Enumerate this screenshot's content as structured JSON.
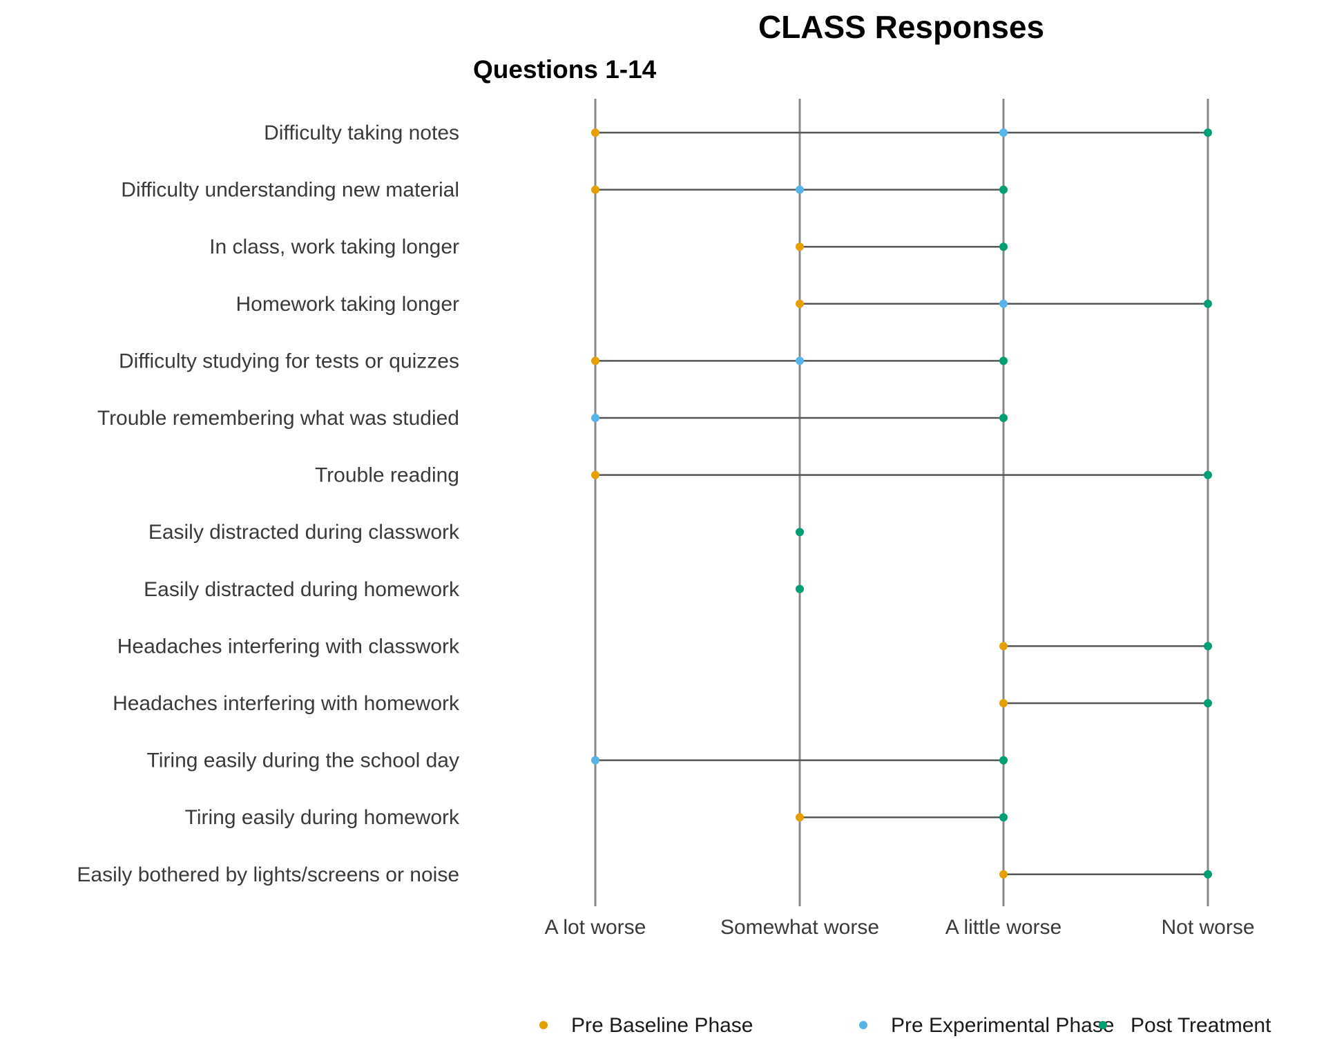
{
  "chart_data": {
    "type": "dumbbell",
    "title": "CLASS Responses",
    "subtitle": "Questions 1-14",
    "x_levels": [
      "A lot worse",
      "Somewhat worse",
      "A little worse",
      "Not worse"
    ],
    "series": [
      {
        "name": "Pre Baseline Phase",
        "color": "#E69F00"
      },
      {
        "name": "Pre Experimental Phase",
        "color": "#56B4E9"
      },
      {
        "name": "Post Treatment",
        "color": "#009E73"
      }
    ],
    "items": [
      {
        "label": "Difficulty taking notes",
        "values": [
          "A lot worse",
          "A little worse",
          "Not worse"
        ]
      },
      {
        "label": "Difficulty understanding new material",
        "values": [
          "A lot worse",
          "Somewhat worse",
          "A little worse"
        ]
      },
      {
        "label": "In class, work taking longer",
        "values": [
          "Somewhat worse",
          null,
          "A little worse"
        ]
      },
      {
        "label": "Homework taking longer",
        "values": [
          "Somewhat worse",
          "A little worse",
          "Not worse"
        ]
      },
      {
        "label": "Difficulty studying for tests or quizzes",
        "values": [
          "A lot worse",
          "Somewhat worse",
          "A little worse"
        ]
      },
      {
        "label": "Trouble remembering what was studied",
        "values": [
          null,
          "A lot worse",
          "A little worse"
        ]
      },
      {
        "label": "Trouble reading",
        "values": [
          "A lot worse",
          null,
          "Not worse"
        ]
      },
      {
        "label": "Easily distracted during classwork",
        "values": [
          null,
          null,
          "Somewhat worse"
        ]
      },
      {
        "label": "Easily distracted during homework",
        "values": [
          null,
          null,
          "Somewhat worse"
        ]
      },
      {
        "label": "Headaches interfering with classwork",
        "values": [
          "A little worse",
          null,
          "Not worse"
        ]
      },
      {
        "label": "Headaches interfering with homework",
        "values": [
          "A little worse",
          null,
          "Not worse"
        ]
      },
      {
        "label": "Tiring easily during the school day",
        "values": [
          null,
          "A lot worse",
          "A little worse"
        ]
      },
      {
        "label": "Tiring easily during homework",
        "values": [
          "Somewhat worse",
          null,
          "A little worse"
        ]
      },
      {
        "label": "Easily bothered by lights/screens or noise",
        "values": [
          "A little worse",
          null,
          "Not worse"
        ]
      }
    ],
    "legend_position": "bottom",
    "grid": "vertical lines at each level",
    "line_color": "#555555",
    "grid_color": "#888888"
  }
}
